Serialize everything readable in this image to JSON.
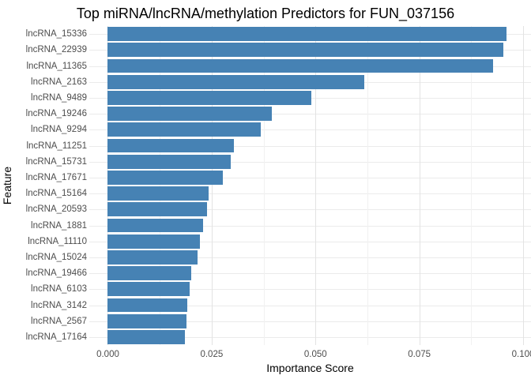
{
  "chart_data": {
    "type": "bar",
    "orientation": "horizontal",
    "title": "Top miRNA/lncRNA/methylation Predictors for FUN_037156",
    "xlabel": "Importance Score",
    "ylabel": "Feature",
    "categories": [
      "lncRNA_15336",
      "lncRNA_22939",
      "lncRNA_11365",
      "lncRNA_2163",
      "lncRNA_9489",
      "lncRNA_19246",
      "lncRNA_9294",
      "lncRNA_11251",
      "lncRNA_15731",
      "lncRNA_17671",
      "lncRNA_15164",
      "lncRNA_20593",
      "lncRNA_1881",
      "lncRNA_11110",
      "lncRNA_15024",
      "lncRNA_19466",
      "lncRNA_6103",
      "lncRNA_3142",
      "lncRNA_2567",
      "lncRNA_17164"
    ],
    "values": [
      0.096,
      0.0952,
      0.0927,
      0.0617,
      0.049,
      0.0395,
      0.0368,
      0.0303,
      0.0296,
      0.0276,
      0.0243,
      0.0239,
      0.023,
      0.0222,
      0.0216,
      0.02,
      0.0197,
      0.0192,
      0.0189,
      0.0185
    ],
    "x_ticks": [
      0.0,
      0.025,
      0.05,
      0.075,
      0.1
    ],
    "x_tick_labels": [
      "0.000",
      "0.025",
      "0.050",
      "0.075",
      "0.100"
    ],
    "x_minor_ticks": [
      0.0125,
      0.0375,
      0.0625,
      0.0875
    ],
    "xlim": [
      -0.00447,
      0.1019
    ],
    "grid": true,
    "legend": false,
    "bar_color": "#4682b4",
    "grid_major_color": "#e3e3e3",
    "grid_minor_color": "#f1f1f1",
    "grid_row_color": "#ebebeb"
  }
}
